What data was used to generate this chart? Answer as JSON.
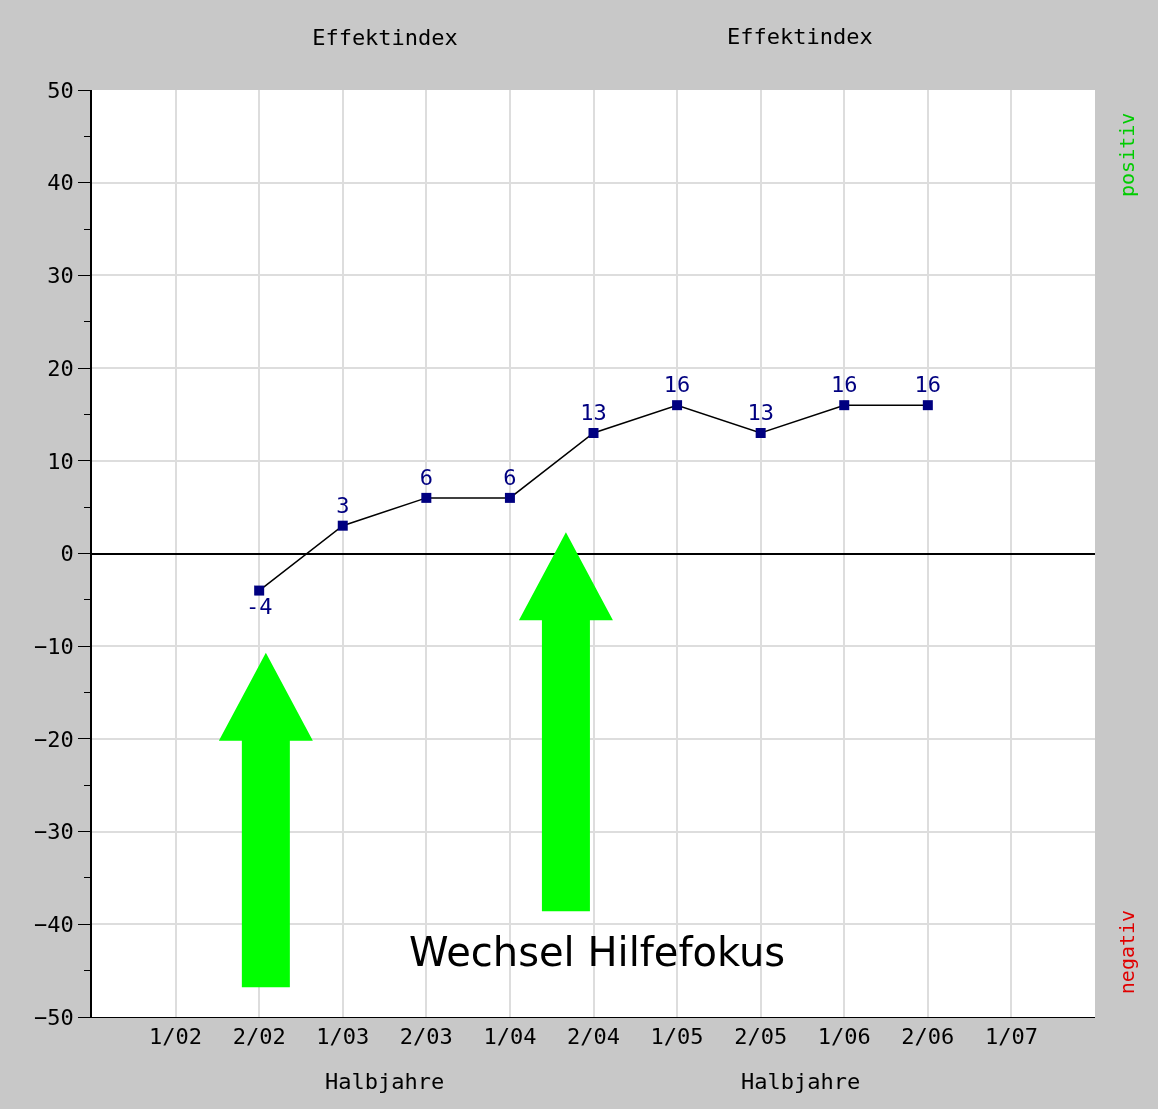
{
  "chart_data": {
    "type": "line",
    "title": "Effektindex",
    "xlabel": "Halbjahre",
    "categories": [
      "1/02",
      "2/02",
      "1/03",
      "2/03",
      "1/04",
      "2/04",
      "1/05",
      "2/05",
      "1/06",
      "2/06",
      "1/07"
    ],
    "series": [
      {
        "color": "#000080",
        "values": [
          null,
          -4,
          3,
          6,
          6,
          13,
          16,
          13,
          16,
          16,
          null
        ]
      }
    ],
    "ylim": [
      -50,
      50
    ],
    "yticks": [
      -50,
      -40,
      -30,
      -20,
      -10,
      0,
      10,
      20,
      30,
      40,
      50
    ],
    "grid": true,
    "marker": "square",
    "line_style": "solid",
    "data_labels": true,
    "annotations": [
      "Effektindex",
      "Halbjahre",
      "Wechsel Hilfefokus",
      "positiv",
      "negativ"
    ]
  }
}
